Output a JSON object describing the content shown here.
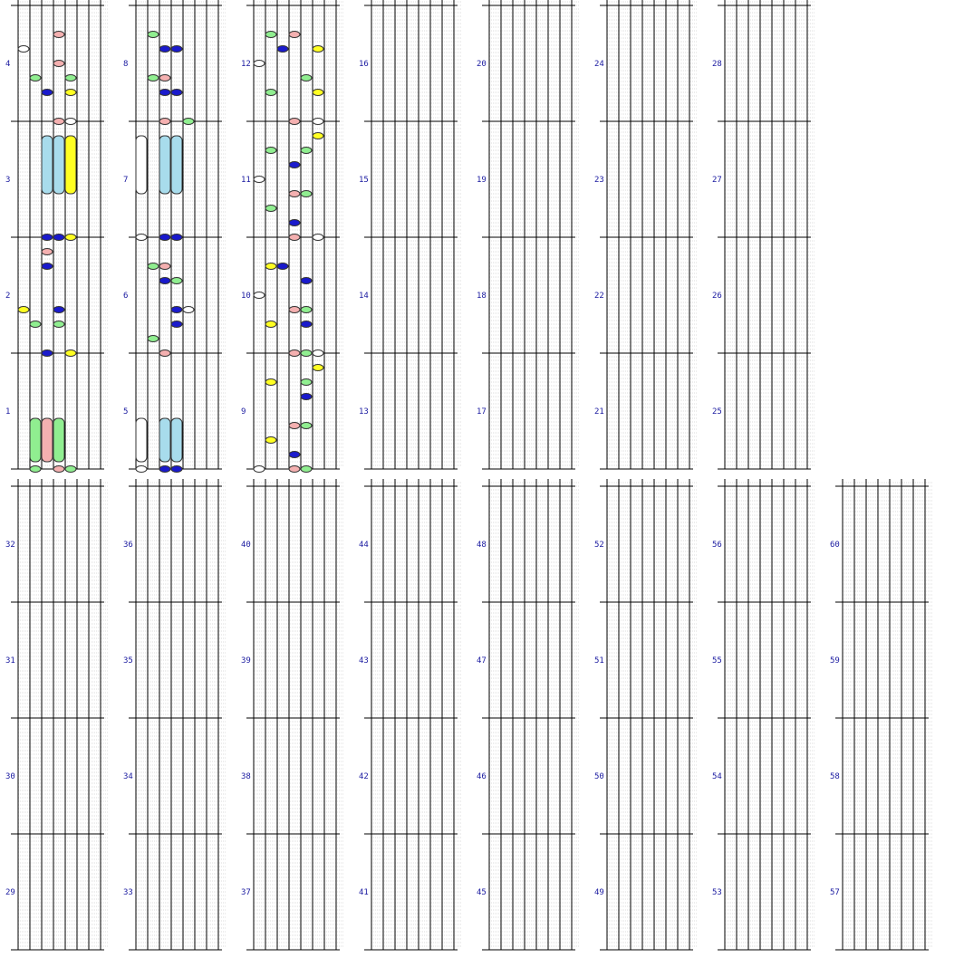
{
  "title": "",
  "colors": {
    "white": "#ffffff",
    "green": "#90ee90",
    "pink": "#f4b0b0",
    "blue": "#1a1acc",
    "yellow": "#ffff22",
    "lightblue": "#a8dcec",
    "label": "#1a1aa0",
    "grid": "#b8b8b8",
    "lane": "#000000"
  },
  "lanes": 8,
  "chart_data": {
    "type": "rhythm-game-chart",
    "measures": [
      {
        "n": 1,
        "notes": [
          {
            "lane": 1,
            "color": "green",
            "beat": 0
          },
          {
            "lane": 3,
            "color": "pink",
            "beat": 0
          },
          {
            "lane": 4,
            "color": "green",
            "beat": 0
          }
        ],
        "holds": [
          {
            "lane": 1,
            "color": "green",
            "from": 0.5,
            "to": 3.5
          },
          {
            "lane": 2,
            "color": "pink",
            "from": 0.5,
            "to": 3.5
          },
          {
            "lane": 3,
            "color": "green",
            "from": 0.5,
            "to": 3.5
          }
        ]
      },
      {
        "n": 2,
        "notes": [
          {
            "lane": 0,
            "color": "yellow",
            "beat": 3
          },
          {
            "lane": 1,
            "color": "green",
            "beat": 2
          },
          {
            "lane": 2,
            "color": "blue",
            "beat": 0
          },
          {
            "lane": 2,
            "color": "blue",
            "beat": 6
          },
          {
            "lane": 2,
            "color": "pink",
            "beat": 7
          },
          {
            "lane": 3,
            "color": "blue",
            "beat": 3
          },
          {
            "lane": 3,
            "color": "green",
            "beat": 2
          },
          {
            "lane": 4,
            "color": "yellow",
            "beat": 0
          }
        ],
        "holds": []
      },
      {
        "n": 3,
        "notes": [
          {
            "lane": 2,
            "color": "blue",
            "beat": 0
          },
          {
            "lane": 3,
            "color": "blue",
            "beat": 0
          },
          {
            "lane": 4,
            "color": "yellow",
            "beat": 0
          }
        ],
        "holds": [
          {
            "lane": 2,
            "color": "lightblue",
            "from": 3,
            "to": 7
          },
          {
            "lane": 3,
            "color": "lightblue",
            "from": 3,
            "to": 7
          },
          {
            "lane": 4,
            "color": "yellow",
            "from": 3,
            "to": 7
          }
        ]
      },
      {
        "n": 4,
        "notes": [
          {
            "lane": 0,
            "color": "white",
            "beat": 5
          },
          {
            "lane": 1,
            "color": "green",
            "beat": 3
          },
          {
            "lane": 2,
            "color": "blue",
            "beat": 2
          },
          {
            "lane": 3,
            "color": "pink",
            "beat": 6
          },
          {
            "lane": 3,
            "color": "pink",
            "beat": 4
          },
          {
            "lane": 3,
            "color": "pink",
            "beat": 0
          },
          {
            "lane": 4,
            "color": "green",
            "beat": 3
          },
          {
            "lane": 4,
            "color": "yellow",
            "beat": 2
          },
          {
            "lane": 4,
            "color": "white",
            "beat": 0
          }
        ],
        "holds": []
      },
      {
        "n": 5,
        "notes": [
          {
            "lane": 0,
            "color": "white",
            "beat": 0
          },
          {
            "lane": 2,
            "color": "blue",
            "beat": 0
          },
          {
            "lane": 3,
            "color": "blue",
            "beat": 0
          }
        ],
        "holds": [
          {
            "lane": 0,
            "color": "white",
            "from": 0.5,
            "to": 3.5
          },
          {
            "lane": 2,
            "color": "lightblue",
            "from": 0.5,
            "to": 3.5
          },
          {
            "lane": 3,
            "color": "lightblue",
            "from": 0.5,
            "to": 3.5
          }
        ]
      },
      {
        "n": 6,
        "notes": [
          {
            "lane": 1,
            "color": "green",
            "beat": 1
          },
          {
            "lane": 1,
            "color": "green",
            "beat": 6
          },
          {
            "lane": 2,
            "color": "blue",
            "beat": 5
          },
          {
            "lane": 2,
            "color": "pink",
            "beat": 0
          },
          {
            "lane": 2,
            "color": "pink",
            "beat": 6
          },
          {
            "lane": 3,
            "color": "green",
            "beat": 5
          },
          {
            "lane": 3,
            "color": "blue",
            "beat": 3
          },
          {
            "lane": 4,
            "color": "white",
            "beat": 3
          },
          {
            "lane": 3,
            "color": "blue",
            "beat": 2
          }
        ],
        "holds": []
      },
      {
        "n": 7,
        "notes": [
          {
            "lane": 0,
            "color": "white",
            "beat": 0
          },
          {
            "lane": 2,
            "color": "blue",
            "beat": 0
          },
          {
            "lane": 3,
            "color": "blue",
            "beat": 0
          }
        ],
        "holds": [
          {
            "lane": 0,
            "color": "white",
            "from": 3,
            "to": 7
          },
          {
            "lane": 2,
            "color": "lightblue",
            "from": 3,
            "to": 7
          },
          {
            "lane": 3,
            "color": "lightblue",
            "from": 3,
            "to": 7
          }
        ]
      },
      {
        "n": 8,
        "notes": [
          {
            "lane": 1,
            "color": "green",
            "beat": 6
          },
          {
            "lane": 1,
            "color": "green",
            "beat": 3
          },
          {
            "lane": 2,
            "color": "blue",
            "beat": 5
          },
          {
            "lane": 2,
            "color": "blue",
            "beat": 2
          },
          {
            "lane": 2,
            "color": "pink",
            "beat": 3
          },
          {
            "lane": 2,
            "color": "pink",
            "beat": 0
          },
          {
            "lane": 3,
            "color": "blue",
            "beat": 5
          },
          {
            "lane": 3,
            "color": "blue",
            "beat": 2
          },
          {
            "lane": 4,
            "color": "green",
            "beat": 0
          }
        ],
        "holds": []
      },
      {
        "n": 9,
        "notes": [
          {
            "lane": 0,
            "color": "white",
            "beat": 0
          },
          {
            "lane": 1,
            "color": "yellow",
            "beat": 2
          },
          {
            "lane": 1,
            "color": "yellow",
            "beat": 6
          },
          {
            "lane": 3,
            "color": "pink",
            "beat": 0
          },
          {
            "lane": 3,
            "color": "pink",
            "beat": 3
          },
          {
            "lane": 3,
            "color": "blue",
            "beat": 1
          },
          {
            "lane": 4,
            "color": "green",
            "beat": 0
          },
          {
            "lane": 4,
            "color": "green",
            "beat": 3
          },
          {
            "lane": 4,
            "color": "blue",
            "beat": 5
          },
          {
            "lane": 4,
            "color": "green",
            "beat": 6
          },
          {
            "lane": 5,
            "color": "yellow",
            "beat": 7
          }
        ],
        "holds": []
      },
      {
        "n": 10,
        "notes": [
          {
            "lane": 0,
            "color": "white",
            "beat": 4
          },
          {
            "lane": 1,
            "color": "yellow",
            "beat": 2
          },
          {
            "lane": 1,
            "color": "yellow",
            "beat": 6
          },
          {
            "lane": 2,
            "color": "blue",
            "beat": 6
          },
          {
            "lane": 3,
            "color": "pink",
            "beat": 3
          },
          {
            "lane": 3,
            "color": "pink",
            "beat": 0
          },
          {
            "lane": 4,
            "color": "blue",
            "beat": 5
          },
          {
            "lane": 4,
            "color": "green",
            "beat": 3
          },
          {
            "lane": 4,
            "color": "blue",
            "beat": 2
          },
          {
            "lane": 4,
            "color": "green",
            "beat": 0
          },
          {
            "lane": 5,
            "color": "white",
            "beat": 0
          }
        ],
        "holds": []
      },
      {
        "n": 11,
        "notes": [
          {
            "lane": 0,
            "color": "white",
            "beat": 4
          },
          {
            "lane": 1,
            "color": "green",
            "beat": 2
          },
          {
            "lane": 1,
            "color": "green",
            "beat": 6
          },
          {
            "lane": 3,
            "color": "pink",
            "beat": 3
          },
          {
            "lane": 3,
            "color": "pink",
            "beat": 0
          },
          {
            "lane": 3,
            "color": "blue",
            "beat": 1
          },
          {
            "lane": 3,
            "color": "blue",
            "beat": 5
          },
          {
            "lane": 4,
            "color": "green",
            "beat": 3
          },
          {
            "lane": 4,
            "color": "green",
            "beat": 6
          },
          {
            "lane": 5,
            "color": "yellow",
            "beat": 7
          },
          {
            "lane": 5,
            "color": "white",
            "beat": 0
          }
        ],
        "holds": []
      },
      {
        "n": 12,
        "notes": [
          {
            "lane": 0,
            "color": "white",
            "beat": 4
          },
          {
            "lane": 1,
            "color": "green",
            "beat": 6
          },
          {
            "lane": 1,
            "color": "green",
            "beat": 2
          },
          {
            "lane": 2,
            "color": "blue",
            "beat": 5
          },
          {
            "lane": 3,
            "color": "pink",
            "beat": 6
          },
          {
            "lane": 3,
            "color": "pink",
            "beat": 0
          },
          {
            "lane": 4,
            "color": "green",
            "beat": 3
          },
          {
            "lane": 5,
            "color": "yellow",
            "beat": 5
          },
          {
            "lane": 5,
            "color": "yellow",
            "beat": 2
          },
          {
            "lane": 5,
            "color": "white",
            "beat": 0
          }
        ],
        "holds": []
      }
    ]
  },
  "measure_labels": [
    "1",
    "2",
    "3",
    "4",
    "5",
    "6",
    "7",
    "8",
    "9",
    "10",
    "11",
    "12",
    "13",
    "14",
    "15",
    "16",
    "17",
    "18",
    "19",
    "20",
    "21",
    "22",
    "23",
    "24",
    "25",
    "26",
    "27",
    "28",
    "29",
    "30",
    "31",
    "32",
    "33",
    "34",
    "35",
    "36",
    "37",
    "38",
    "39",
    "40",
    "41",
    "42",
    "43",
    "44",
    "45",
    "46",
    "47",
    "48",
    "49",
    "50",
    "51",
    "52",
    "53",
    "54",
    "55",
    "56",
    "57",
    "58",
    "59",
    "60"
  ]
}
